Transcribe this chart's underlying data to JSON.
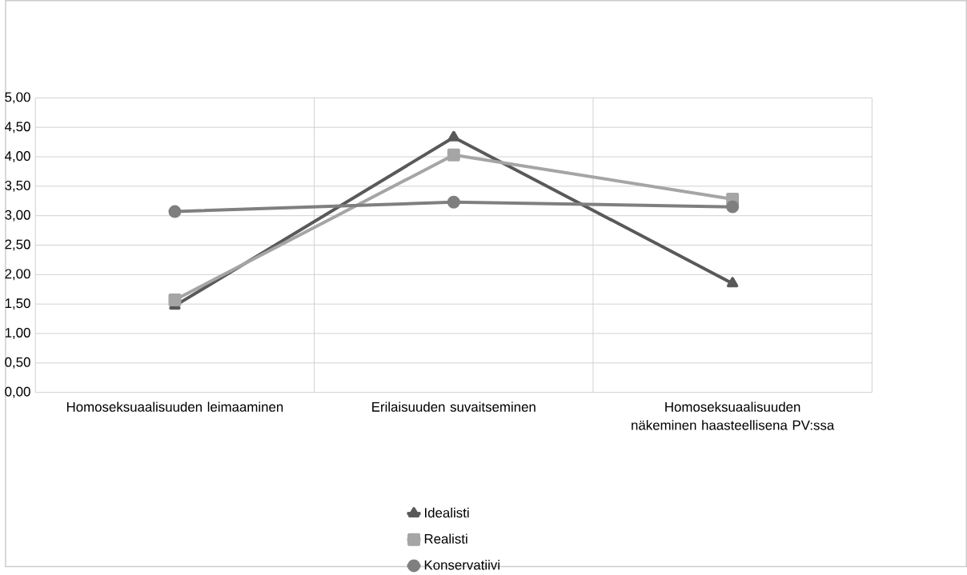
{
  "chart_data": {
    "type": "line",
    "categories": [
      "Homoseksuaalisuuden leimaaminen",
      "Erilaisuuden suvaitseminen",
      "Homoseksuaalisuuden näkeminen haasteellisena PV:ssa"
    ],
    "series": [
      {
        "name": "Idealisti",
        "color": "#595959",
        "marker": "triangle",
        "values": [
          1.47,
          4.33,
          1.85
        ]
      },
      {
        "name": "Realisti",
        "color": "#a5a5a5",
        "marker": "square",
        "values": [
          1.57,
          4.03,
          3.28
        ]
      },
      {
        "name": "Konservatiivi",
        "color": "#7f7f7f",
        "marker": "circle",
        "values": [
          3.07,
          3.23,
          3.15
        ]
      }
    ],
    "ylim": [
      0,
      5
    ],
    "yticks": [
      {
        "value": 0,
        "label": "0,00"
      },
      {
        "value": 0.5,
        "label": "0,50"
      },
      {
        "value": 1,
        "label": "1,00"
      },
      {
        "value": 1.5,
        "label": "1,50"
      },
      {
        "value": 2,
        "label": "2,00"
      },
      {
        "value": 2.5,
        "label": "2,50"
      },
      {
        "value": 3,
        "label": "3,00"
      },
      {
        "value": 3.5,
        "label": "3,50"
      },
      {
        "value": 4,
        "label": "4,00"
      },
      {
        "value": 4.5,
        "label": "4,50"
      },
      {
        "value": 5,
        "label": "5,00"
      }
    ],
    "grid": true,
    "legend": "bottom"
  }
}
